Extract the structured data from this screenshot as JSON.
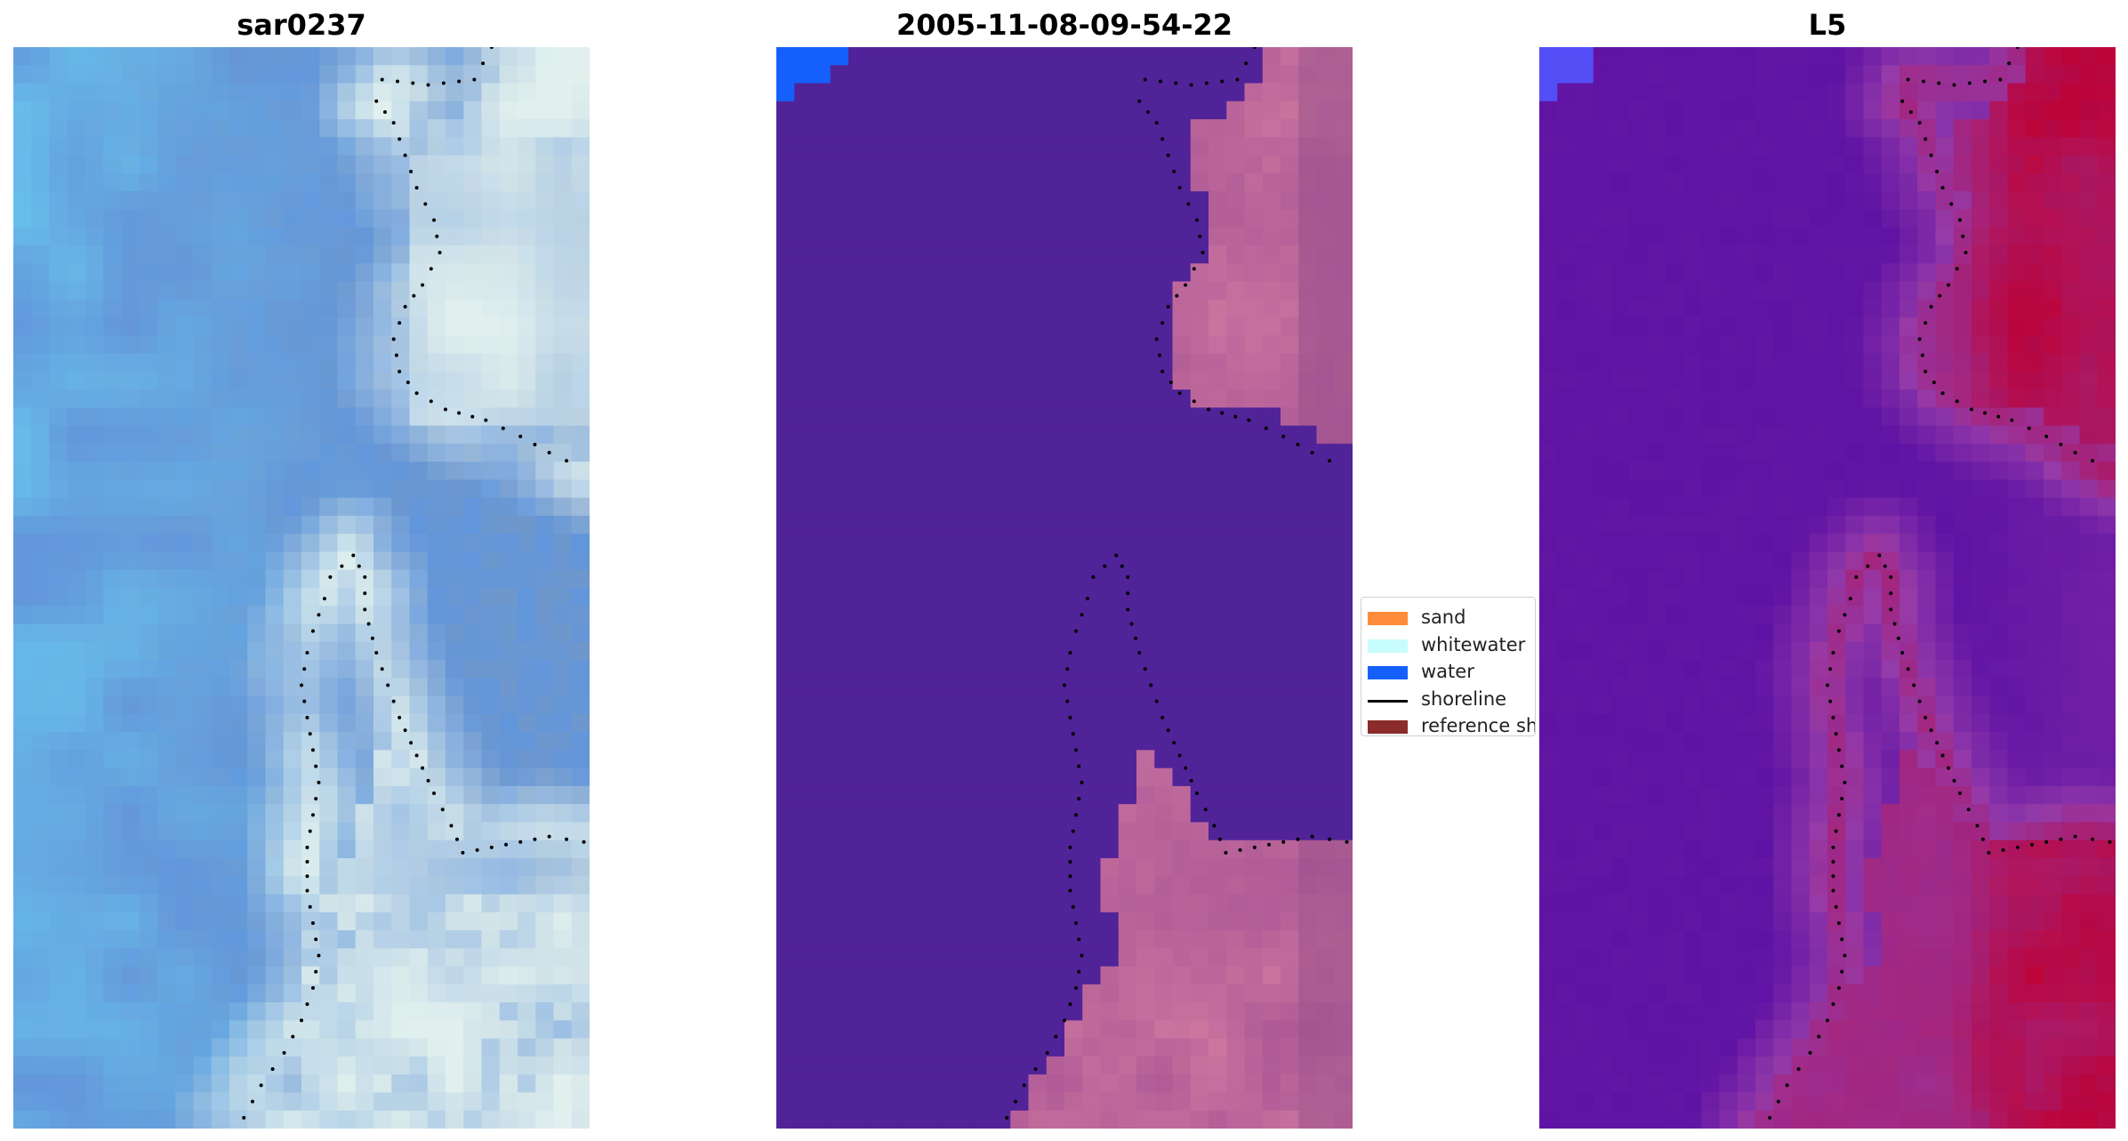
{
  "panels": [
    {
      "title": "sar0237",
      "name": "sar-image-panel",
      "render": "rgb"
    },
    {
      "title": "2005-11-08-09-54-22",
      "name": "classified-image-panel",
      "render": "classified"
    },
    {
      "title": "L5",
      "name": "index-image-panel",
      "render": "index"
    }
  ],
  "legend": {
    "items": [
      {
        "label": "sand",
        "color": "#ff8c3a",
        "kind": "patch"
      },
      {
        "label": "whitewater",
        "color": "#c8fdfd",
        "kind": "patch"
      },
      {
        "label": "water",
        "color": "#1560fb",
        "kind": "patch"
      },
      {
        "label": "shoreline",
        "color": "#000000",
        "kind": "line"
      },
      {
        "label": "reference shoreline",
        "color": "#8b2b2b",
        "kind": "patch"
      }
    ]
  },
  "colors": {
    "classified_water": "#512398",
    "water_blue": "#1560fb",
    "index_low": "#5f13a4",
    "index_high": "#c00030",
    "shoreline_dots": "#000000"
  }
}
